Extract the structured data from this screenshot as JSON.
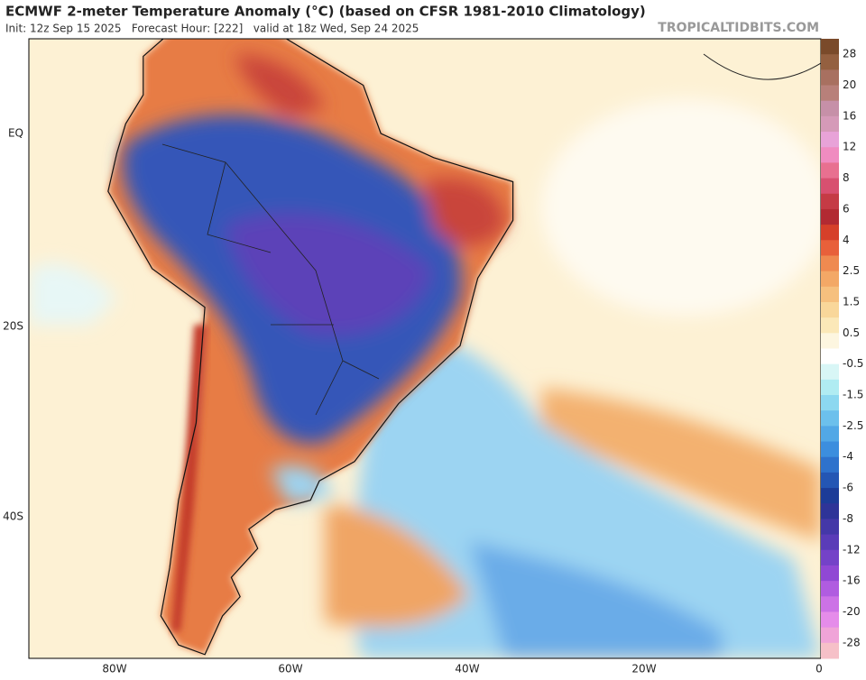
{
  "header": {
    "title": "ECMWF 2-meter Temperature Anomaly (°C) (based on CFSR 1981-2010 Climatology)",
    "subtitle": "Init: 12z Sep 15 2025   Forecast Hour: [222]   valid at 18z Wed, Sep 24 2025",
    "watermark": "TROPICALTIDBITS.COM"
  },
  "map": {
    "lat_labels": [
      "EQ",
      "20S",
      "40S"
    ],
    "lon_labels": [
      "80W",
      "60W",
      "40W",
      "20W",
      "0"
    ]
  },
  "colorbar": {
    "labels": [
      28,
      20,
      16,
      12,
      8,
      6,
      4,
      2.5,
      1.5,
      0.5,
      -0.5,
      -1.5,
      -2.5,
      -4,
      -6,
      -8,
      -12,
      -16,
      -20,
      -28
    ]
  }
}
